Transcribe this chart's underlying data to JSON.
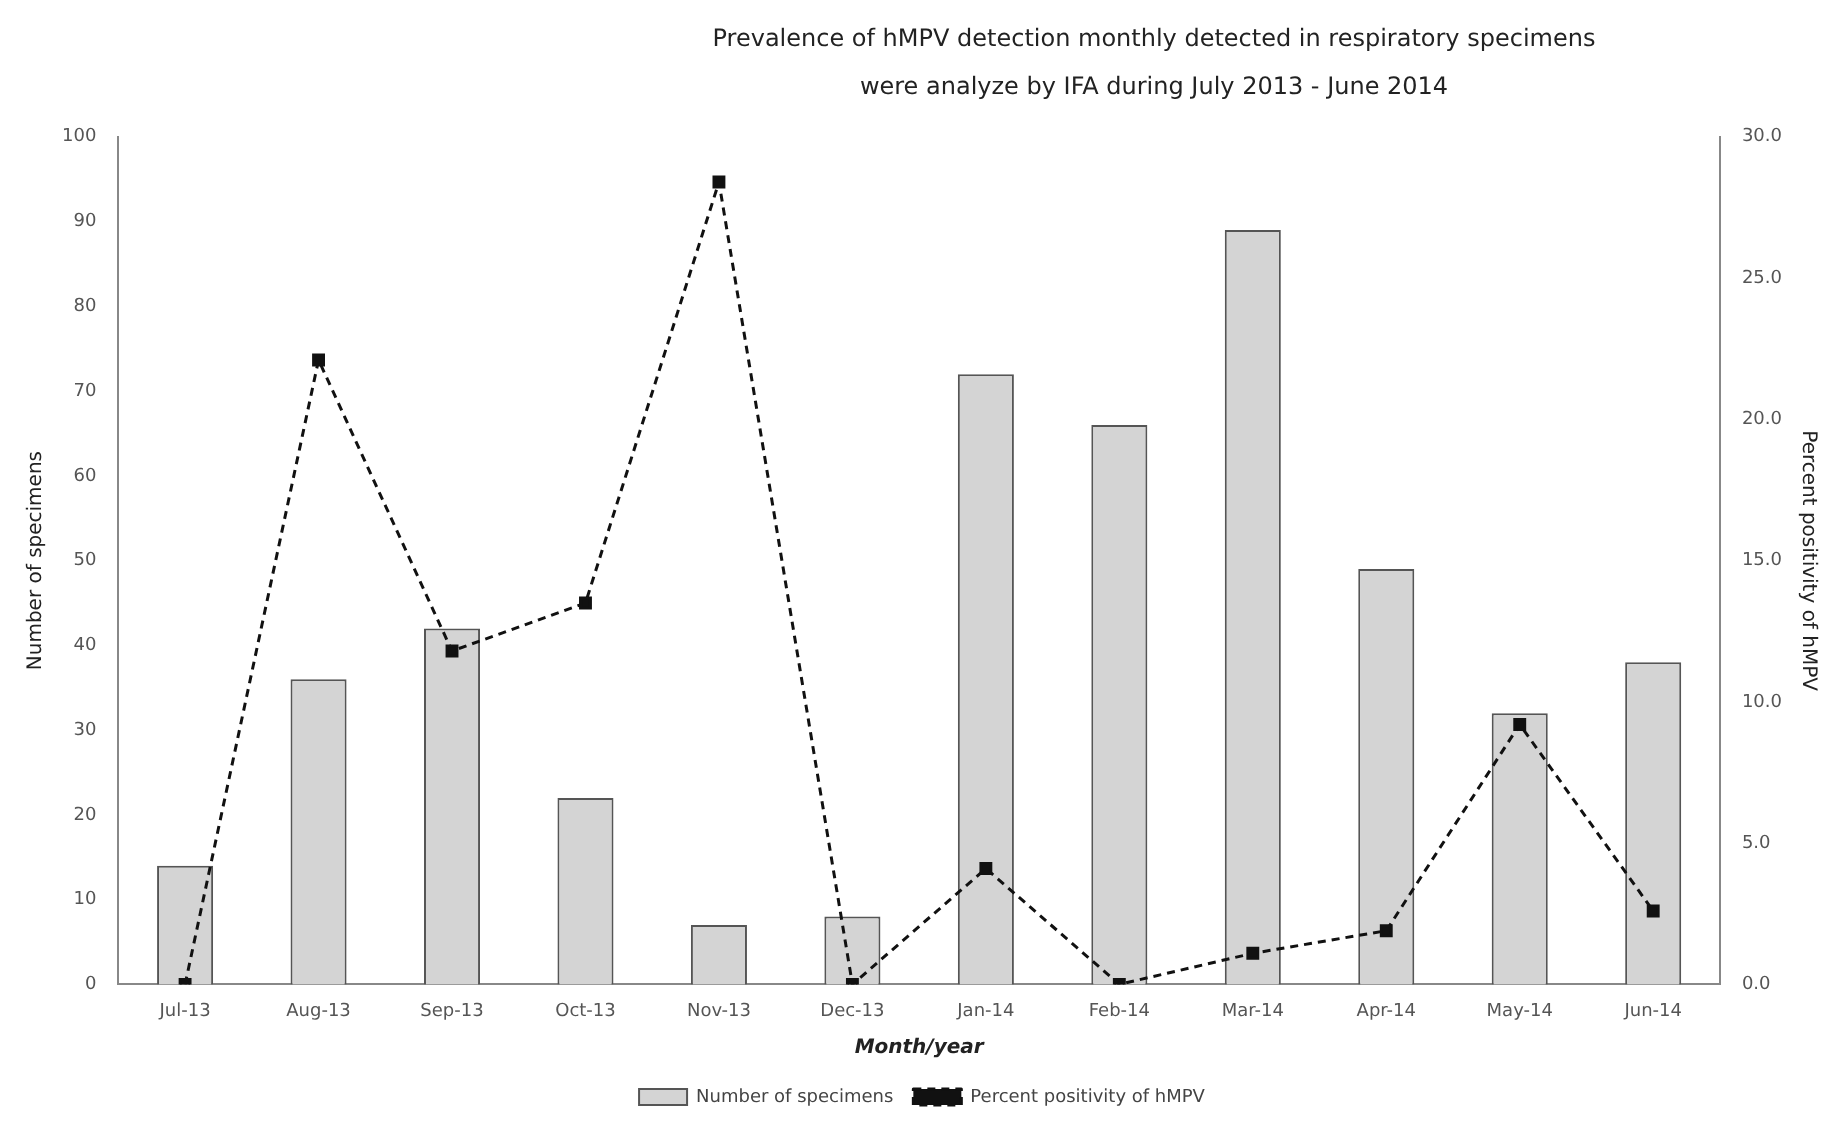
{
  "chart_data": {
    "type": "bar",
    "title": "Prevalence of hMPV detection monthly detected in respiratory specimens",
    "subtitle": "were analyze by IFA during July 2013 - June 2014",
    "xlabel": "Month/year",
    "ylabel": "Number of specimens",
    "y2label": "Percent positivity of hMPV",
    "categories": [
      "Jul-13",
      "Aug-13",
      "Sep-13",
      "Oct-13",
      "Nov-13",
      "Dec-13",
      "Jan-14",
      "Feb-14",
      "Mar-14",
      "Apr-14",
      "May-14",
      "Jun-14"
    ],
    "series": [
      {
        "name": "Number of specimens",
        "color": "#d4d4d4",
        "values": [
          14,
          36,
          42,
          22,
          7,
          8,
          72,
          66,
          89,
          49,
          32,
          38
        ]
      },
      {
        "name": "Percent positivity of hMPV",
        "type": "line",
        "axis": "y2",
        "color": "#111111",
        "marker": "square",
        "line_style": "dashed",
        "values": [
          0,
          22.1,
          11.8,
          13.5,
          28.4,
          0,
          4.1,
          0,
          1.1,
          1.9,
          9.2,
          2.6
        ]
      }
    ],
    "ylim": [
      0,
      100
    ],
    "yticks": [
      0,
      10,
      20,
      30,
      40,
      50,
      60,
      70,
      80,
      90,
      100
    ],
    "y2lim": [
      0,
      30
    ],
    "y2ticks": [
      {
        "value": 0,
        "label": "0.0"
      },
      {
        "value": 5,
        "label": "5.0"
      },
      {
        "value": 10,
        "label": "10.0"
      },
      {
        "value": 15,
        "label": "15.0"
      },
      {
        "value": 20,
        "label": "20.0"
      },
      {
        "value": 25,
        "label": "25.0"
      },
      {
        "value": 30,
        "label": "30.0"
      }
    ],
    "grid": false,
    "legend": "bottom"
  }
}
